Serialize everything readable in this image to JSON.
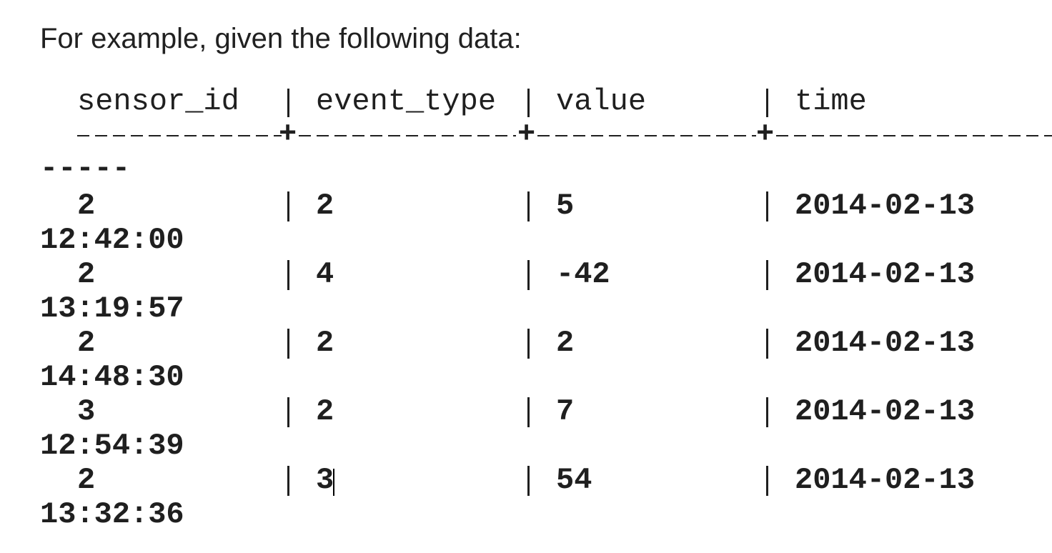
{
  "intro_text": "For example, given the following data:",
  "table": {
    "headers": [
      "sensor_id",
      "event_type",
      "value",
      "time"
    ],
    "separator_tail": "-----",
    "rows": [
      {
        "sensor_id": "2",
        "event_type": "2",
        "value": "5",
        "date": "2014-02-13",
        "time": "12:42:00"
      },
      {
        "sensor_id": "2",
        "event_type": "4",
        "value": "-42",
        "date": "2014-02-13",
        "time": "13:19:57"
      },
      {
        "sensor_id": "2",
        "event_type": "2",
        "value": "2",
        "date": "2014-02-13",
        "time": "14:48:30"
      },
      {
        "sensor_id": "3",
        "event_type": "2",
        "value": "7",
        "date": "2014-02-13",
        "time": "12:54:39"
      },
      {
        "sensor_id": "2",
        "event_type": "3",
        "value": "54",
        "date": "2014-02-13",
        "time": "13:32:36"
      }
    ]
  }
}
